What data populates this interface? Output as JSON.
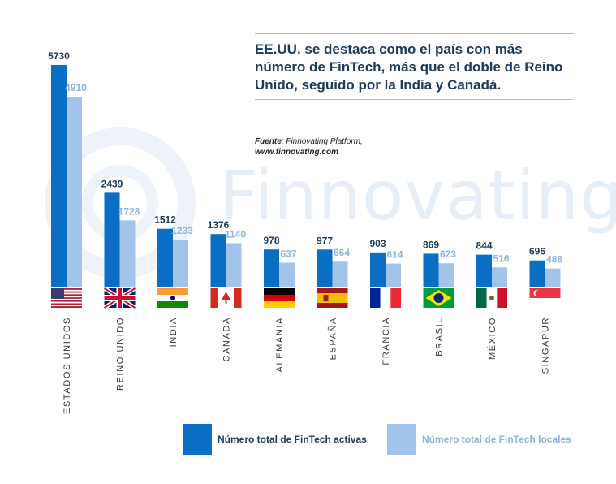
{
  "title": "EE.UU. se destaca como el país con más número de FinTech, más que el doble de Reino Unido, seguido por la India y Canadá.",
  "source_label": "Fuente",
  "source_text": ": Finnovating Platform,",
  "source_url": "www.finnovating.com",
  "watermark": "Finnovating",
  "colors": {
    "active": "#0a6ec4",
    "local": "#a3c4ea",
    "label_active": "#1f3a5a",
    "label_local": "#8fb4de"
  },
  "chart_data": {
    "type": "bar",
    "categories": [
      "ESTADOS UNIDOS",
      "REINO UNIDO",
      "INDIA",
      "CANADÁ",
      "ALEMANIA",
      "ESPAÑA",
      "FRANCIA",
      "BRASIL",
      "MÉXICO",
      "SINGAPUR"
    ],
    "series": [
      {
        "name": "Número total de FinTech activas",
        "values": [
          5730,
          2439,
          1512,
          1376,
          978,
          977,
          903,
          869,
          844,
          696
        ]
      },
      {
        "name": "Número total de FinTech locales",
        "values": [
          4910,
          1728,
          1233,
          1140,
          637,
          664,
          614,
          623,
          516,
          488
        ]
      }
    ],
    "flags": [
      "us-flag-icon",
      "uk-flag-icon",
      "india-flag-icon",
      "canada-flag-icon",
      "germany-flag-icon",
      "spain-flag-icon",
      "france-flag-icon",
      "brazil-flag-icon",
      "mexico-flag-icon",
      "singapore-flag-icon"
    ],
    "legend_position": "bottom-right",
    "grid": false
  }
}
